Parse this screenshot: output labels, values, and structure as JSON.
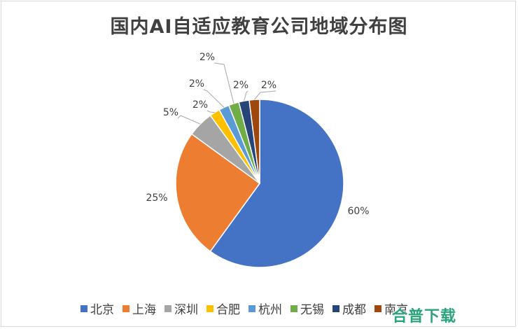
{
  "chart_data": {
    "type": "pie",
    "title": "国内AI自适应教育公司地域分布图",
    "categories": [
      "北京",
      "上海",
      "深圳",
      "合肥",
      "杭州",
      "无锡",
      "成都",
      "南京"
    ],
    "values": [
      60,
      25,
      5,
      2,
      2,
      2,
      2,
      2
    ],
    "data_labels": [
      "60%",
      "25%",
      "5%",
      "2%",
      "2%",
      "2%",
      "2%",
      "2%"
    ],
    "colors": [
      "#4472C4",
      "#ED7D31",
      "#A5A5A5",
      "#FFC000",
      "#5B9BD5",
      "#70AD47",
      "#264478",
      "#9E480E"
    ],
    "legend_position": "bottom"
  },
  "watermark": "合普下载"
}
